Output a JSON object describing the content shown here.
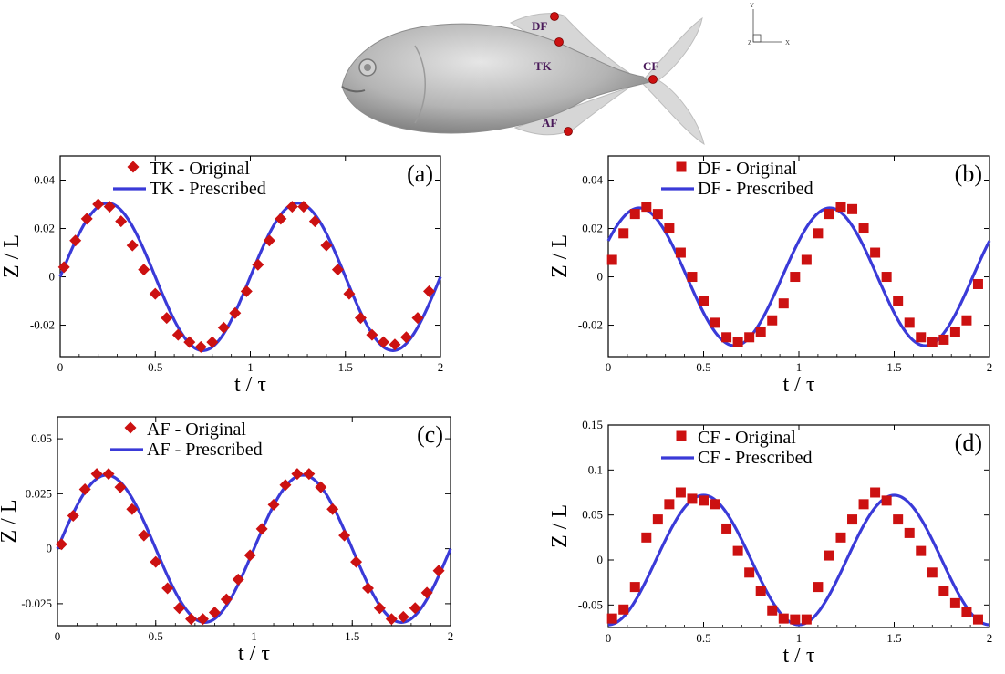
{
  "figure": {
    "fish_labels": {
      "dorsal": "DF",
      "trunk": "TK",
      "caudal": "CF",
      "anal": "AF"
    },
    "axis_triad": {
      "y": "Y",
      "z": "Z",
      "x": "X"
    },
    "colors": {
      "line": "#3a3ad8",
      "marker": "#cc1111",
      "fish_body": "#b4b4b4",
      "fins": "#d9d9d9",
      "point": "#cc1111",
      "label": "#4a1a5a"
    }
  },
  "chart_data": [
    {
      "type": "line",
      "panel_label": "(a)",
      "xlabel": "t / τ",
      "ylabel": "Z / L",
      "xlim": [
        0,
        2
      ],
      "ylim": [
        -0.033,
        0.05
      ],
      "xticks": [
        0,
        0.5,
        1,
        1.5,
        2
      ],
      "xtick_labels": [
        "0",
        "0.5",
        "1",
        "1.5",
        "2"
      ],
      "yticks": [
        -0.02,
        0,
        0.02,
        0.04
      ],
      "ytick_labels": [
        "-0.02",
        "0",
        "0.02",
        "0.04"
      ],
      "legend_position": "top-right",
      "curve": {
        "amplitude": 0.0305,
        "phase": 0.0
      },
      "series": [
        {
          "name": "TK - Original",
          "style": "diamond",
          "x": [
            0.02,
            0.08,
            0.14,
            0.2,
            0.26,
            0.32,
            0.38,
            0.44,
            0.5,
            0.56,
            0.62,
            0.68,
            0.74,
            0.8,
            0.86,
            0.92,
            0.98,
            1.04,
            1.1,
            1.16,
            1.22,
            1.28,
            1.34,
            1.4,
            1.46,
            1.52,
            1.58,
            1.64,
            1.7,
            1.76,
            1.82,
            1.88,
            1.94
          ],
          "y": [
            0.004,
            0.015,
            0.024,
            0.03,
            0.029,
            0.023,
            0.013,
            0.003,
            -0.007,
            -0.017,
            -0.024,
            -0.027,
            -0.029,
            -0.027,
            -0.021,
            -0.015,
            -0.006,
            0.005,
            0.015,
            0.024,
            0.029,
            0.029,
            0.023,
            0.013,
            0.003,
            -0.007,
            -0.017,
            -0.024,
            -0.027,
            -0.028,
            -0.025,
            -0.017,
            -0.006
          ]
        },
        {
          "name": "TK - Prescribed",
          "style": "line",
          "x": [
            0,
            2
          ]
        }
      ]
    },
    {
      "type": "line",
      "panel_label": "(b)",
      "xlabel": "t / τ",
      "ylabel": "Z / L",
      "xlim": [
        0,
        2
      ],
      "ylim": [
        -0.033,
        0.05
      ],
      "xticks": [
        0,
        0.5,
        1,
        1.5,
        2
      ],
      "xtick_labels": [
        "0",
        "0.5",
        "1",
        "1.5",
        "2"
      ],
      "yticks": [
        -0.02,
        0,
        0.02,
        0.04
      ],
      "ytick_labels": [
        "-0.02",
        "0",
        "0.02",
        "0.04"
      ],
      "legend_position": "top-right",
      "curve": {
        "amplitude": 0.0285,
        "phase": 0.55
      },
      "series": [
        {
          "name": "DF - Original",
          "style": "square",
          "x": [
            0.02,
            0.08,
            0.14,
            0.2,
            0.26,
            0.32,
            0.38,
            0.44,
            0.5,
            0.56,
            0.62,
            0.68,
            0.74,
            0.8,
            0.86,
            0.92,
            0.98,
            1.04,
            1.1,
            1.16,
            1.22,
            1.28,
            1.34,
            1.4,
            1.46,
            1.52,
            1.58,
            1.64,
            1.7,
            1.76,
            1.82,
            1.88,
            1.94
          ],
          "y": [
            0.007,
            0.018,
            0.026,
            0.029,
            0.026,
            0.02,
            0.01,
            0.0,
            -0.01,
            -0.019,
            -0.025,
            -0.027,
            -0.025,
            -0.023,
            -0.018,
            -0.011,
            0.0,
            0.007,
            0.018,
            0.026,
            0.029,
            0.028,
            0.02,
            0.01,
            0.0,
            -0.01,
            -0.019,
            -0.025,
            -0.027,
            -0.026,
            -0.023,
            -0.018,
            -0.003
          ]
        },
        {
          "name": "DF - Prescribed",
          "style": "line",
          "x": [
            0,
            2
          ]
        }
      ]
    },
    {
      "type": "line",
      "panel_label": "(c)",
      "xlabel": "t / τ",
      "ylabel": "Z / L",
      "xlim": [
        0,
        2
      ],
      "ylim": [
        -0.035,
        0.06
      ],
      "xticks": [
        0,
        0.5,
        1,
        1.5,
        2
      ],
      "xtick_labels": [
        "0",
        "0.5",
        "1",
        "1.5",
        "2"
      ],
      "yticks": [
        -0.025,
        0,
        0.025,
        0.05
      ],
      "ytick_labels": [
        "-0.025",
        "0",
        "0.025",
        "0.05"
      ],
      "legend_position": "top-right",
      "curve": {
        "amplitude": 0.0335,
        "phase": 0.0
      },
      "series": [
        {
          "name": "AF - Original",
          "style": "diamond",
          "x": [
            0.02,
            0.08,
            0.14,
            0.2,
            0.26,
            0.32,
            0.38,
            0.44,
            0.5,
            0.56,
            0.62,
            0.68,
            0.74,
            0.8,
            0.86,
            0.92,
            0.98,
            1.04,
            1.1,
            1.16,
            1.22,
            1.28,
            1.34,
            1.4,
            1.46,
            1.52,
            1.58,
            1.64,
            1.7,
            1.76,
            1.82,
            1.88,
            1.94
          ],
          "y": [
            0.002,
            0.015,
            0.027,
            0.034,
            0.034,
            0.028,
            0.018,
            0.006,
            -0.006,
            -0.018,
            -0.027,
            -0.032,
            -0.032,
            -0.029,
            -0.023,
            -0.014,
            -0.003,
            0.009,
            0.02,
            0.029,
            0.034,
            0.034,
            0.028,
            0.018,
            0.006,
            -0.006,
            -0.018,
            -0.027,
            -0.032,
            -0.031,
            -0.027,
            -0.02,
            -0.01
          ]
        },
        {
          "name": "AF - Prescribed",
          "style": "line",
          "x": [
            0,
            2
          ]
        }
      ]
    },
    {
      "type": "line",
      "panel_label": "(d)",
      "xlabel": "t / τ",
      "ylabel": "Z / L",
      "xlim": [
        0,
        2
      ],
      "ylim": [
        -0.075,
        0.15
      ],
      "xticks": [
        0,
        0.5,
        1,
        1.5,
        2
      ],
      "xtick_labels": [
        "0",
        "0.5",
        "1",
        "1.5",
        "2"
      ],
      "yticks": [
        -0.05,
        0,
        0.05,
        0.1,
        0.15
      ],
      "ytick_labels": [
        "-0.05",
        "0",
        "0.05",
        "0.1",
        "0.15"
      ],
      "legend_position": "top-center",
      "curve": {
        "amplitude": 0.072,
        "phase": -1.5708
      },
      "series": [
        {
          "name": "CF - Original",
          "style": "square",
          "x": [
            0.02,
            0.08,
            0.14,
            0.2,
            0.26,
            0.32,
            0.38,
            0.44,
            0.5,
            0.56,
            0.62,
            0.68,
            0.74,
            0.8,
            0.86,
            0.92,
            0.98,
            1.04,
            1.1,
            1.16,
            1.22,
            1.28,
            1.34,
            1.4,
            1.46,
            1.52,
            1.58,
            1.64,
            1.7,
            1.76,
            1.82,
            1.88,
            1.94
          ],
          "y": [
            -0.065,
            -0.055,
            -0.03,
            0.025,
            0.045,
            0.062,
            0.075,
            0.068,
            0.066,
            0.062,
            0.035,
            0.01,
            -0.014,
            -0.034,
            -0.056,
            -0.065,
            -0.066,
            -0.066,
            -0.03,
            0.005,
            0.025,
            0.045,
            0.062,
            0.075,
            0.066,
            0.045,
            0.03,
            0.01,
            -0.014,
            -0.034,
            -0.048,
            -0.058,
            -0.066
          ]
        },
        {
          "name": "CF - Prescribed",
          "style": "line",
          "x": [
            0,
            2
          ]
        }
      ]
    }
  ]
}
